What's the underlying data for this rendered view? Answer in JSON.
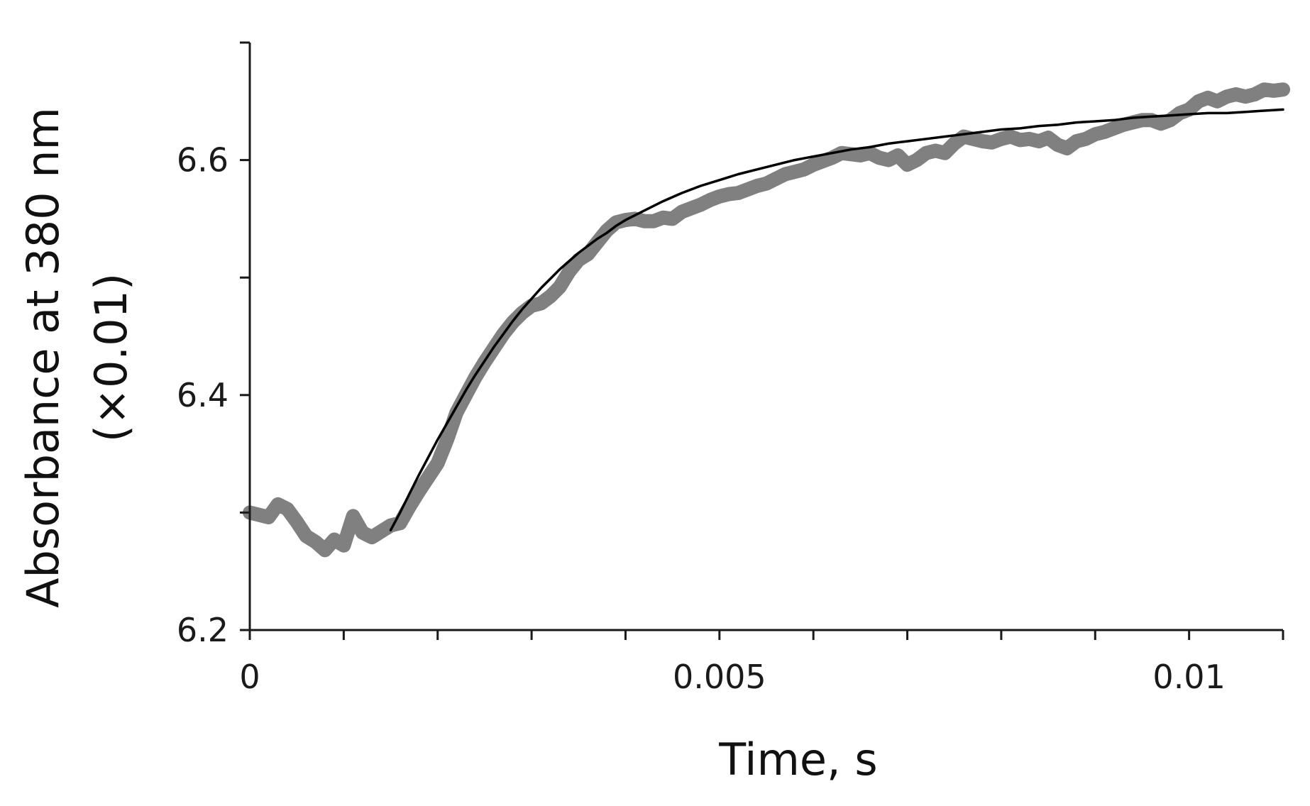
{
  "chart_data": {
    "type": "line",
    "title": "",
    "xlabel": "Time, s",
    "ylabel_lines": [
      "Absorbance at 380 nm",
      "(×0.01)"
    ],
    "xlim": [
      0,
      0.011
    ],
    "ylim": [
      6.2,
      6.7
    ],
    "x_ticks": [
      0,
      0.001,
      0.002,
      0.003,
      0.004,
      0.005,
      0.006,
      0.007,
      0.008,
      0.009,
      0.01,
      0.011
    ],
    "x_tick_labels": [
      {
        "value": 0,
        "label": "0"
      },
      {
        "value": 0.005,
        "label": "0.005"
      },
      {
        "value": 0.01,
        "label": "0.01"
      }
    ],
    "y_ticks": [
      6.2,
      6.3,
      6.4,
      6.5,
      6.6,
      6.7
    ],
    "y_tick_labels": [
      {
        "value": 6.2,
        "label": "6.2"
      },
      {
        "value": 6.4,
        "label": "6.4"
      },
      {
        "value": 6.6,
        "label": "6.6"
      }
    ],
    "grid": false,
    "legend": "none",
    "series": [
      {
        "kind": "data",
        "color": "#808080",
        "points": [
          [
            0.0,
            6.3
          ],
          [
            0.0002,
            6.296
          ],
          [
            0.0003,
            6.307
          ],
          [
            0.0004,
            6.303
          ],
          [
            0.0005,
            6.292
          ],
          [
            0.0006,
            6.28
          ],
          [
            0.0007,
            6.275
          ],
          [
            0.0008,
            6.268
          ],
          [
            0.0009,
            6.277
          ],
          [
            0.001,
            6.272
          ],
          [
            0.0011,
            6.297
          ],
          [
            0.0012,
            6.283
          ],
          [
            0.0013,
            6.279
          ],
          [
            0.0014,
            6.284
          ],
          [
            0.0015,
            6.289
          ],
          [
            0.0016,
            6.291
          ],
          [
            0.0017,
            6.305
          ],
          [
            0.0018,
            6.318
          ],
          [
            0.0019,
            6.33
          ],
          [
            0.002,
            6.342
          ],
          [
            0.0021,
            6.362
          ],
          [
            0.0022,
            6.385
          ],
          [
            0.0023,
            6.4
          ],
          [
            0.0024,
            6.415
          ],
          [
            0.0025,
            6.428
          ],
          [
            0.0026,
            6.44
          ],
          [
            0.0027,
            6.452
          ],
          [
            0.0028,
            6.462
          ],
          [
            0.0029,
            6.47
          ],
          [
            0.003,
            6.476
          ],
          [
            0.0031,
            6.478
          ],
          [
            0.0032,
            6.484
          ],
          [
            0.0033,
            6.492
          ],
          [
            0.0034,
            6.505
          ],
          [
            0.0035,
            6.515
          ],
          [
            0.0036,
            6.52
          ],
          [
            0.0037,
            6.53
          ],
          [
            0.0038,
            6.54
          ],
          [
            0.0039,
            6.547
          ],
          [
            0.004,
            6.549
          ],
          [
            0.0041,
            6.55
          ],
          [
            0.0042,
            6.548
          ],
          [
            0.0043,
            6.548
          ],
          [
            0.0044,
            6.551
          ],
          [
            0.0045,
            6.55
          ],
          [
            0.0046,
            6.556
          ],
          [
            0.0047,
            6.559
          ],
          [
            0.0048,
            6.562
          ],
          [
            0.0049,
            6.566
          ],
          [
            0.005,
            6.569
          ],
          [
            0.0051,
            6.571
          ],
          [
            0.0052,
            6.572
          ],
          [
            0.0053,
            6.575
          ],
          [
            0.0054,
            6.578
          ],
          [
            0.0055,
            6.58
          ],
          [
            0.0056,
            6.584
          ],
          [
            0.0057,
            6.588
          ],
          [
            0.0058,
            6.59
          ],
          [
            0.0059,
            6.592
          ],
          [
            0.006,
            6.596
          ],
          [
            0.0061,
            6.599
          ],
          [
            0.0062,
            6.602
          ],
          [
            0.0063,
            6.606
          ],
          [
            0.0064,
            6.605
          ],
          [
            0.0065,
            6.604
          ],
          [
            0.0066,
            6.606
          ],
          [
            0.0067,
            6.602
          ],
          [
            0.0068,
            6.6
          ],
          [
            0.0069,
            6.604
          ],
          [
            0.007,
            6.596
          ],
          [
            0.0071,
            6.6
          ],
          [
            0.0072,
            6.606
          ],
          [
            0.0073,
            6.608
          ],
          [
            0.0074,
            6.606
          ],
          [
            0.0075,
            6.614
          ],
          [
            0.0076,
            6.62
          ],
          [
            0.0077,
            6.618
          ],
          [
            0.0078,
            6.616
          ],
          [
            0.0079,
            6.615
          ],
          [
            0.008,
            6.618
          ],
          [
            0.0081,
            6.62
          ],
          [
            0.0082,
            6.617
          ],
          [
            0.0083,
            6.618
          ],
          [
            0.0084,
            6.616
          ],
          [
            0.0085,
            6.619
          ],
          [
            0.0086,
            6.613
          ],
          [
            0.0087,
            6.61
          ],
          [
            0.0088,
            6.616
          ],
          [
            0.0089,
            6.618
          ],
          [
            0.009,
            6.622
          ],
          [
            0.0091,
            6.624
          ],
          [
            0.0092,
            6.627
          ],
          [
            0.0093,
            6.63
          ],
          [
            0.0094,
            6.632
          ],
          [
            0.0095,
            6.634
          ],
          [
            0.0096,
            6.634
          ],
          [
            0.0097,
            6.631
          ],
          [
            0.0098,
            6.634
          ],
          [
            0.0099,
            6.64
          ],
          [
            0.01,
            6.643
          ],
          [
            0.0101,
            6.65
          ],
          [
            0.0102,
            6.653
          ],
          [
            0.0103,
            6.65
          ],
          [
            0.0104,
            6.654
          ],
          [
            0.0105,
            6.656
          ],
          [
            0.0106,
            6.654
          ],
          [
            0.0107,
            6.656
          ],
          [
            0.0108,
            6.66
          ],
          [
            0.0109,
            6.659
          ],
          [
            0.011,
            6.66
          ]
        ]
      },
      {
        "kind": "fit",
        "color": "#000000",
        "points": [
          [
            0.0015,
            6.285
          ],
          [
            0.0016,
            6.3
          ],
          [
            0.0017,
            6.316
          ],
          [
            0.0018,
            6.332
          ],
          [
            0.0019,
            6.347
          ],
          [
            0.002,
            6.362
          ],
          [
            0.0021,
            6.376
          ],
          [
            0.0022,
            6.39
          ],
          [
            0.0023,
            6.404
          ],
          [
            0.0024,
            6.417
          ],
          [
            0.0025,
            6.429
          ],
          [
            0.0026,
            6.441
          ],
          [
            0.0027,
            6.452
          ],
          [
            0.0028,
            6.463
          ],
          [
            0.0029,
            6.473
          ],
          [
            0.003,
            6.482
          ],
          [
            0.0031,
            6.491
          ],
          [
            0.0032,
            6.499
          ],
          [
            0.0033,
            6.507
          ],
          [
            0.0034,
            6.514
          ],
          [
            0.0035,
            6.521
          ],
          [
            0.0036,
            6.527
          ],
          [
            0.0037,
            6.533
          ],
          [
            0.0038,
            6.538
          ],
          [
            0.0039,
            6.544
          ],
          [
            0.004,
            6.549
          ],
          [
            0.0042,
            6.557
          ],
          [
            0.0044,
            6.565
          ],
          [
            0.0046,
            6.572
          ],
          [
            0.0048,
            6.578
          ],
          [
            0.005,
            6.583
          ],
          [
            0.0052,
            6.588
          ],
          [
            0.0054,
            6.592
          ],
          [
            0.0056,
            6.596
          ],
          [
            0.0058,
            6.6
          ],
          [
            0.006,
            6.603
          ],
          [
            0.0062,
            6.606
          ],
          [
            0.0064,
            6.609
          ],
          [
            0.0066,
            6.611
          ],
          [
            0.0068,
            6.614
          ],
          [
            0.007,
            6.616
          ],
          [
            0.0072,
            6.618
          ],
          [
            0.0074,
            6.62
          ],
          [
            0.0076,
            6.622
          ],
          [
            0.0078,
            6.624
          ],
          [
            0.008,
            6.626
          ],
          [
            0.0082,
            6.627
          ],
          [
            0.0084,
            6.629
          ],
          [
            0.0086,
            6.63
          ],
          [
            0.0088,
            6.632
          ],
          [
            0.009,
            6.633
          ],
          [
            0.0092,
            6.634
          ],
          [
            0.0094,
            6.636
          ],
          [
            0.0096,
            6.637
          ],
          [
            0.0098,
            6.638
          ],
          [
            0.01,
            6.639
          ],
          [
            0.0102,
            6.64
          ],
          [
            0.0104,
            6.64
          ],
          [
            0.0106,
            6.641
          ],
          [
            0.0108,
            6.642
          ],
          [
            0.011,
            6.643
          ]
        ]
      }
    ]
  }
}
